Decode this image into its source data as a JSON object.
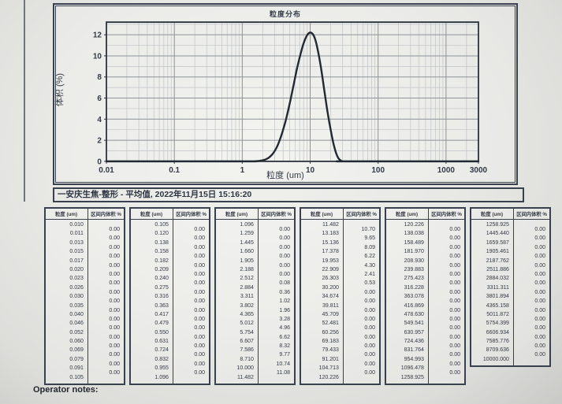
{
  "page": {
    "caption": "一安庆生焦-整形 - 平均值, 2022年11月15日 15:16:20",
    "operator_notes_label": "Operator notes:"
  },
  "chart_data": {
    "type": "line",
    "title": "粒度分布",
    "xlabel": "粒度 (um)",
    "ylabel": "体积 (%)",
    "x_scale": "log",
    "xlim": [
      0.01,
      3000
    ],
    "ylim": [
      0,
      13.2
    ],
    "x_ticks": [
      "0.01",
      "0.1",
      "1",
      "10",
      "100",
      "1000",
      "3000"
    ],
    "y_ticks": [
      0,
      2,
      4,
      6,
      8,
      10,
      12
    ],
    "grid": "on",
    "legend": "none",
    "series": [
      {
        "name": "平均值",
        "x": [
          0.01,
          1.0,
          1.5,
          2.0,
          2.4,
          2.8,
          3.2,
          3.6,
          4.0,
          4.5,
          5.0,
          5.6,
          6.3,
          7.1,
          8.0,
          8.9,
          9.8,
          10.8,
          11.8,
          13.0,
          14.5,
          16.0,
          18.0,
          20.0,
          22.0,
          24.0,
          26.0,
          28.0,
          30.0,
          36.0,
          3000
        ],
        "y": [
          0.0,
          0.0,
          0.0,
          0.1,
          0.3,
          0.7,
          1.3,
          2.1,
          3.0,
          4.2,
          5.5,
          7.0,
          8.6,
          10.0,
          11.2,
          11.9,
          12.2,
          12.1,
          11.6,
          10.5,
          8.8,
          6.9,
          4.7,
          3.0,
          1.7,
          0.8,
          0.3,
          0.1,
          0.0,
          0.0,
          0.0
        ]
      }
    ]
  },
  "tables": {
    "header": {
      "size": "粒度 (um)",
      "volume": "区间内体积 %"
    },
    "columns": [
      {
        "sizes": [
          "0.010",
          "0.011",
          "0.013",
          "0.015",
          "0.017",
          "0.020",
          "0.023",
          "0.026",
          "0.030",
          "0.035",
          "0.040",
          "0.046",
          "0.052",
          "0.060",
          "0.069",
          "0.079",
          "0.091",
          "0.105"
        ],
        "volumes": [
          "0.00",
          "0.00",
          "0.00",
          "0.00",
          "0.00",
          "0.00",
          "0.00",
          "0.00",
          "0.00",
          "0.00",
          "0.00",
          "0.00",
          "0.00",
          "0.00",
          "0.00",
          "0.00",
          "0.00"
        ]
      },
      {
        "sizes": [
          "0.105",
          "0.120",
          "0.138",
          "0.158",
          "0.182",
          "0.209",
          "0.240",
          "0.275",
          "0.316",
          "0.363",
          "0.417",
          "0.479",
          "0.550",
          "0.631",
          "0.724",
          "0.832",
          "0.955",
          "1.096"
        ],
        "volumes": [
          "0.00",
          "0.00",
          "0.00",
          "0.00",
          "0.00",
          "0.00",
          "0.00",
          "0.00",
          "0.00",
          "0.00",
          "0.00",
          "0.00",
          "0.00",
          "0.00",
          "0.00",
          "0.00",
          "0.00"
        ]
      },
      {
        "sizes": [
          "1.096",
          "1.259",
          "1.445",
          "1.660",
          "1.905",
          "2.188",
          "2.512",
          "2.884",
          "3.311",
          "3.802",
          "4.365",
          "5.012",
          "5.754",
          "6.607",
          "7.586",
          "8.710",
          "10.000",
          "11.482"
        ],
        "volumes": [
          "0.00",
          "0.00",
          "0.00",
          "0.00",
          "0.00",
          "0.00",
          "0.08",
          "0.36",
          "1.02",
          "1.96",
          "3.28",
          "4.96",
          "6.62",
          "8.32",
          "9.77",
          "10.74",
          "11.08"
        ]
      },
      {
        "sizes": [
          "11.482",
          "13.183",
          "15.136",
          "17.378",
          "19.953",
          "22.909",
          "26.303",
          "30.200",
          "34.674",
          "39.811",
          "45.709",
          "52.481",
          "60.256",
          "69.183",
          "79.433",
          "91.201",
          "104.713",
          "120.226"
        ],
        "volumes": [
          "10.70",
          "9.65",
          "8.09",
          "6.22",
          "4.30",
          "2.41",
          "0.53",
          "0.00",
          "0.00",
          "0.00",
          "0.00",
          "0.00",
          "0.00",
          "0.00",
          "0.00",
          "0.00",
          "0.00"
        ]
      },
      {
        "sizes": [
          "120.226",
          "138.038",
          "158.489",
          "181.970",
          "208.930",
          "239.883",
          "275.423",
          "316.228",
          "363.078",
          "416.869",
          "478.630",
          "549.541",
          "630.957",
          "724.436",
          "831.764",
          "954.993",
          "1096.478",
          "1258.925"
        ],
        "volumes": [
          "0.00",
          "0.00",
          "0.00",
          "0.00",
          "0.00",
          "0.00",
          "0.00",
          "0.00",
          "0.00",
          "0.00",
          "0.00",
          "0.00",
          "0.00",
          "0.00",
          "0.00",
          "0.00",
          "0.00"
        ]
      },
      {
        "sizes": [
          "1258.925",
          "1445.440",
          "1659.587",
          "1905.461",
          "2187.762",
          "2511.886",
          "2884.032",
          "3311.311",
          "3801.894",
          "4365.158",
          "5011.872",
          "5754.399",
          "6606.934",
          "7585.776",
          "8709.636",
          "10000.000"
        ],
        "volumes": [
          "0.00",
          "0.00",
          "0.00",
          "0.00",
          "0.00",
          "0.00",
          "0.00",
          "0.00",
          "0.00",
          "0.00",
          "0.00",
          "0.00",
          "0.00",
          "0.00",
          "0.00"
        ]
      }
    ]
  }
}
